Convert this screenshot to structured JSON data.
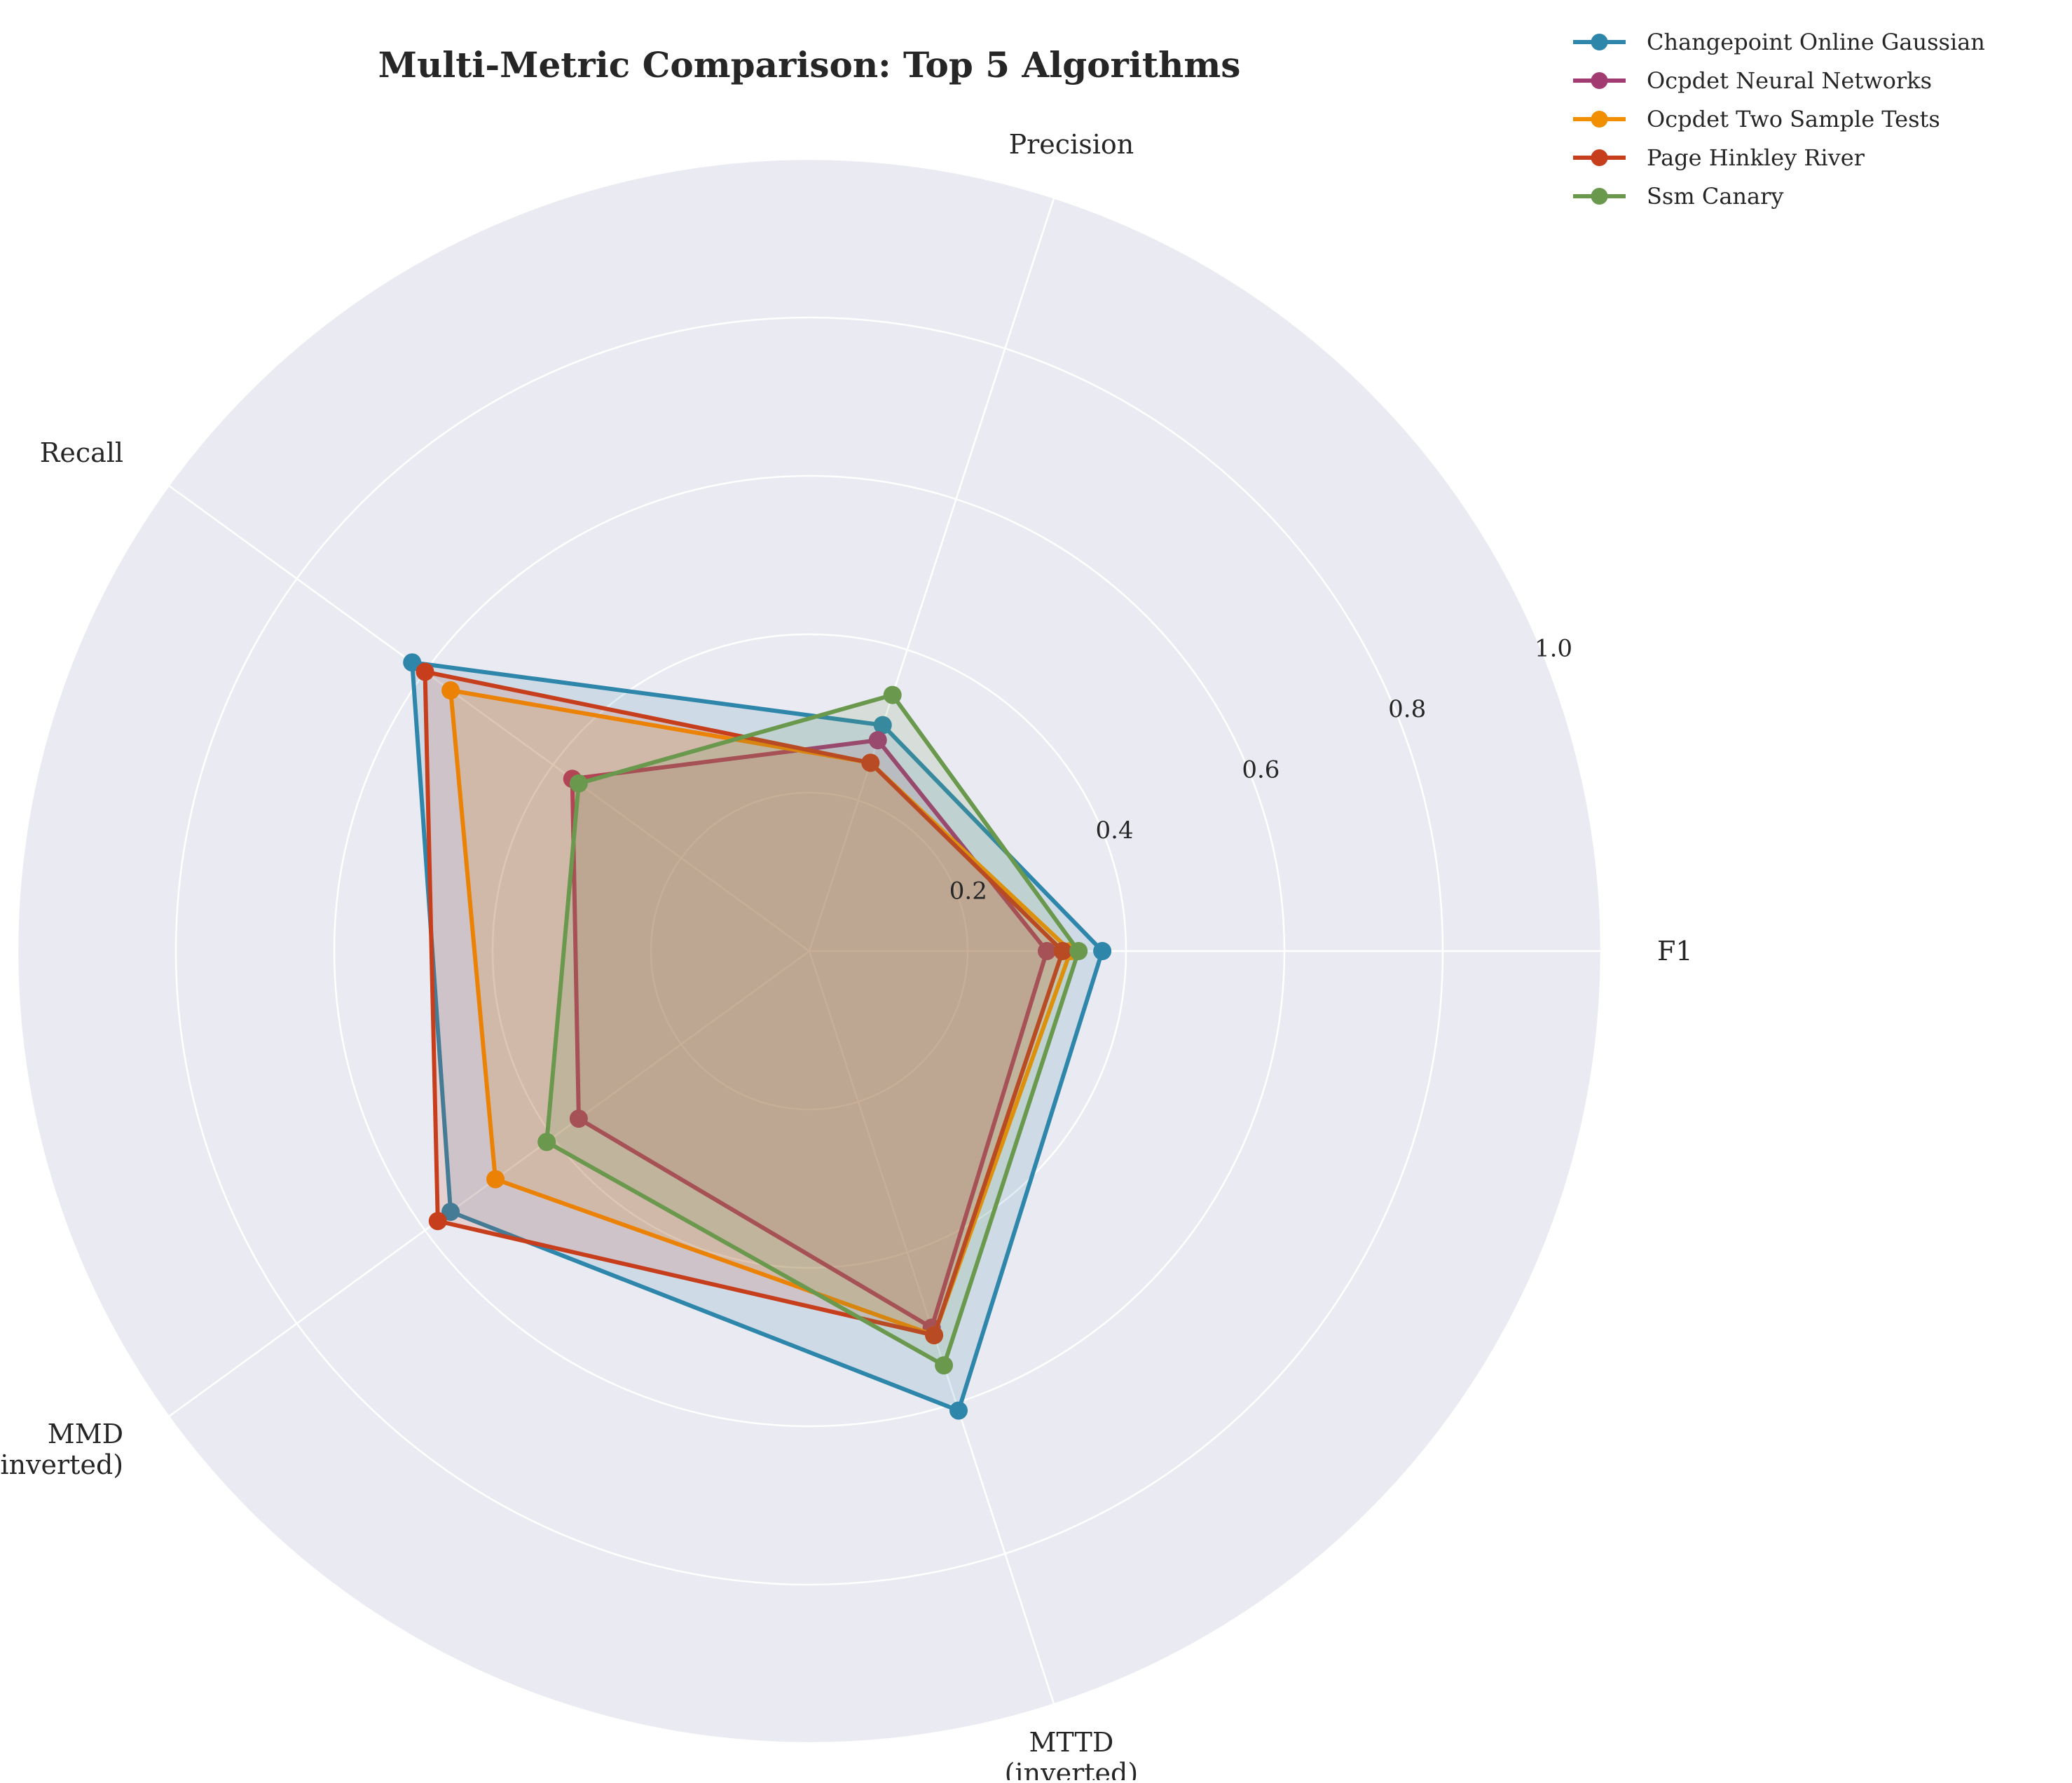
{
  "chart_data": {
    "type": "radar",
    "title": "Multi-Metric Comparison: Top 5 Algorithms",
    "axes": [
      {
        "key": "f1",
        "label_lines": [
          "F1"
        ]
      },
      {
        "key": "precision",
        "label_lines": [
          "Precision"
        ]
      },
      {
        "key": "recall",
        "label_lines": [
          "Recall"
        ]
      },
      {
        "key": "mmd",
        "label_lines": [
          "MMD",
          "(inverted)"
        ]
      },
      {
        "key": "mttd",
        "label_lines": [
          "MTTD",
          "(inverted)"
        ]
      }
    ],
    "radial_range": [
      0,
      1.0
    ],
    "radial_ticks": [
      0.2,
      0.4,
      0.6,
      0.8,
      1.0
    ],
    "radial_tick_labels": [
      "0.2",
      "0.4",
      "0.6",
      "0.8",
      "1.0"
    ],
    "grid": true,
    "legend_position": "top-right",
    "series": [
      {
        "name": "Changepoint Online Gaussian",
        "color": "#2e86ab",
        "values": [
          0.37,
          0.3,
          0.62,
          0.56,
          0.61
        ]
      },
      {
        "name": "Ocpdet Neural Networks",
        "color": "#a23b72",
        "values": [
          0.3,
          0.28,
          0.37,
          0.36,
          0.5
        ]
      },
      {
        "name": "Ocpdet Two Sample Tests",
        "color": "#f18f01",
        "values": [
          0.33,
          0.25,
          0.56,
          0.49,
          0.51
        ]
      },
      {
        "name": "Page Hinkley River",
        "color": "#c73e1d",
        "values": [
          0.32,
          0.25,
          0.6,
          0.58,
          0.51
        ]
      },
      {
        "name": "Ssm Canary",
        "color": "#6a994e",
        "values": [
          0.34,
          0.34,
          0.36,
          0.41,
          0.55
        ]
      }
    ]
  }
}
